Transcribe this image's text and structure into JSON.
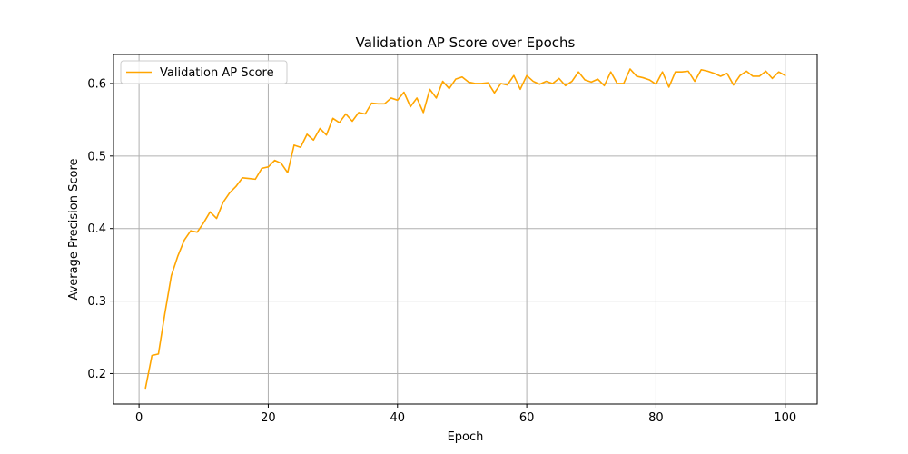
{
  "chart_data": {
    "type": "line",
    "title": "Validation AP Score over Epochs",
    "xlabel": "Epoch",
    "ylabel": "Average Precision Score",
    "xlim": [
      -3.95,
      104.95
    ],
    "ylim": [
      0.158,
      0.64
    ],
    "xticks": [
      0,
      20,
      40,
      60,
      80,
      100
    ],
    "yticks": [
      0.2,
      0.3,
      0.4,
      0.5,
      0.6
    ],
    "xtick_labels": [
      "0",
      "20",
      "40",
      "60",
      "80",
      "100"
    ],
    "ytick_labels": [
      "0.2",
      "0.3",
      "0.4",
      "0.5",
      "0.6"
    ],
    "grid": true,
    "legend": {
      "position": "top-left"
    },
    "series": [
      {
        "name": "Validation AP Score",
        "color": "#ffa500",
        "x": [
          1,
          2,
          3,
          4,
          5,
          6,
          7,
          8,
          9,
          10,
          11,
          12,
          13,
          14,
          15,
          16,
          17,
          18,
          19,
          20,
          21,
          22,
          23,
          24,
          25,
          26,
          27,
          28,
          29,
          30,
          31,
          32,
          33,
          34,
          35,
          36,
          37,
          38,
          39,
          40,
          41,
          42,
          43,
          44,
          45,
          46,
          47,
          48,
          49,
          50,
          51,
          52,
          53,
          54,
          55,
          56,
          57,
          58,
          59,
          60,
          61,
          62,
          63,
          64,
          65,
          66,
          67,
          68,
          69,
          70,
          71,
          72,
          73,
          74,
          75,
          76,
          77,
          78,
          79,
          80,
          81,
          82,
          83,
          84,
          85,
          86,
          87,
          88,
          89,
          90,
          91,
          92,
          93,
          94,
          95,
          96,
          97,
          98,
          99,
          100
        ],
        "values": [
          0.18,
          0.225,
          0.227,
          0.283,
          0.335,
          0.362,
          0.384,
          0.397,
          0.395,
          0.408,
          0.423,
          0.414,
          0.436,
          0.449,
          0.458,
          0.47,
          0.469,
          0.468,
          0.483,
          0.485,
          0.494,
          0.49,
          0.477,
          0.515,
          0.512,
          0.53,
          0.522,
          0.538,
          0.529,
          0.552,
          0.546,
          0.558,
          0.548,
          0.56,
          0.558,
          0.573,
          0.572,
          0.572,
          0.58,
          0.577,
          0.588,
          0.568,
          0.58,
          0.56,
          0.592,
          0.58,
          0.603,
          0.593,
          0.606,
          0.609,
          0.602,
          0.6,
          0.6,
          0.601,
          0.587,
          0.6,
          0.598,
          0.611,
          0.592,
          0.611,
          0.603,
          0.599,
          0.603,
          0.6,
          0.607,
          0.597,
          0.603,
          0.616,
          0.605,
          0.602,
          0.606,
          0.597,
          0.616,
          0.6,
          0.6,
          0.62,
          0.61,
          0.608,
          0.605,
          0.599,
          0.616,
          0.595,
          0.616,
          0.616,
          0.617,
          0.603,
          0.619,
          0.617,
          0.614,
          0.61,
          0.614,
          0.598,
          0.611,
          0.617,
          0.61,
          0.61,
          0.617,
          0.607,
          0.616,
          0.611
        ]
      }
    ]
  }
}
